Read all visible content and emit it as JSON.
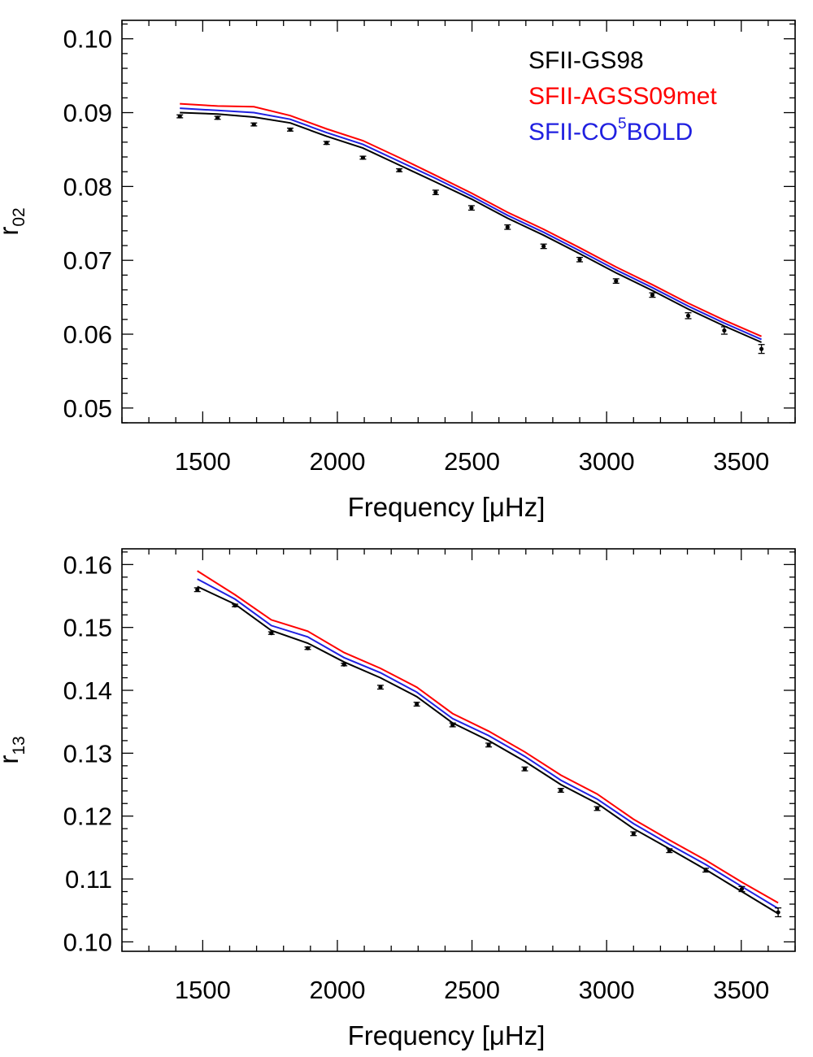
{
  "colors": {
    "model_gs98": "#000000",
    "model_agss09met": "#ff0000",
    "model_co5bold": "#2020e0",
    "observed": "#000000",
    "axes": "#000000"
  },
  "chart_data": [
    {
      "type": "line",
      "xlabel": "Frequency [μHz]",
      "ylabel": "r",
      "ylabel_sub": "02",
      "xlim": [
        1200,
        3700
      ],
      "ylim": [
        0.048,
        0.1025
      ],
      "xticks": [
        1500,
        2000,
        2500,
        3000,
        3500
      ],
      "xtick_labels": [
        "1500",
        "2000",
        "2500",
        "3000",
        "3500"
      ],
      "yticks": [
        0.05,
        0.06,
        0.07,
        0.08,
        0.09,
        0.1
      ],
      "ytick_labels": [
        "0.05",
        "0.06",
        "0.07",
        "0.08",
        "0.09",
        "0.10"
      ],
      "legend": {
        "position": "top-right",
        "entries": [
          {
            "series": "SFII-GS98",
            "text": "SFII-GS98",
            "sup": "",
            "after": ""
          },
          {
            "series": "SFII-AGSS09met",
            "text": "SFII-AGSS09met",
            "sup": "",
            "after": ""
          },
          {
            "series": "SFII-CO5BOLD",
            "text": "SFII-CO",
            "sup": "5",
            "after": "BOLD"
          }
        ]
      },
      "x": [
        1415,
        1555,
        1690,
        1825,
        1960,
        2095,
        2230,
        2365,
        2498,
        2632,
        2766,
        2900,
        3035,
        3170,
        3303,
        3437,
        3575
      ],
      "series": [
        {
          "name": "SFII-GS98",
          "color_key": "model_gs98",
          "values": [
            0.09,
            0.0898,
            0.0894,
            0.0886,
            0.0868,
            0.0852,
            0.0829,
            0.0806,
            0.0783,
            0.0757,
            0.0734,
            0.0709,
            0.0683,
            0.0659,
            0.0634,
            0.0611,
            0.0589
          ]
        },
        {
          "name": "SFII-CO5BOLD",
          "color_key": "model_co5bold",
          "values": [
            0.0906,
            0.0903,
            0.09,
            0.0891,
            0.0873,
            0.0857,
            0.0834,
            0.0811,
            0.0787,
            0.0761,
            0.0738,
            0.0713,
            0.0687,
            0.0663,
            0.0638,
            0.0615,
            0.0593
          ]
        },
        {
          "name": "SFII-AGSS09met",
          "color_key": "model_agss09met",
          "values": [
            0.0912,
            0.0909,
            0.0908,
            0.0896,
            0.0878,
            0.0862,
            0.0839,
            0.0815,
            0.0791,
            0.0765,
            0.0742,
            0.0717,
            0.0691,
            0.0667,
            0.0642,
            0.0619,
            0.0597
          ]
        }
      ],
      "observed": {
        "x": [
          1415,
          1555,
          1690,
          1825,
          1960,
          2095,
          2230,
          2365,
          2498,
          2632,
          2766,
          2900,
          3035,
          3170,
          3303,
          3437,
          3575
        ],
        "y": [
          0.0895,
          0.0893,
          0.0884,
          0.0877,
          0.0859,
          0.0839,
          0.0822,
          0.0792,
          0.0771,
          0.0745,
          0.0719,
          0.0701,
          0.0672,
          0.0653,
          0.0625,
          0.0605,
          0.058
        ],
        "err": [
          0.0002,
          0.0002,
          0.0002,
          0.0002,
          0.0002,
          0.0002,
          0.0002,
          0.0003,
          0.0003,
          0.0003,
          0.0003,
          0.0003,
          0.0003,
          0.0003,
          0.0004,
          0.0005,
          0.0006
        ]
      }
    },
    {
      "type": "line",
      "xlabel": "Frequency [μHz]",
      "ylabel": "r",
      "ylabel_sub": "13",
      "xlim": [
        1200,
        3700
      ],
      "ylim": [
        0.0985,
        0.1625
      ],
      "xticks": [
        1500,
        2000,
        2500,
        3000,
        3500
      ],
      "xtick_labels": [
        "1500",
        "2000",
        "2500",
        "3000",
        "3500"
      ],
      "yticks": [
        0.1,
        0.11,
        0.12,
        0.13,
        0.14,
        0.15,
        0.16
      ],
      "ytick_labels": [
        "0.10",
        "0.11",
        "0.12",
        "0.13",
        "0.14",
        "0.15",
        "0.16"
      ],
      "x": [
        1480,
        1620,
        1755,
        1890,
        2025,
        2160,
        2295,
        2428,
        2562,
        2696,
        2830,
        2965,
        3100,
        3233,
        3368,
        3502,
        3637
      ],
      "series": [
        {
          "name": "SFII-GS98",
          "color_key": "model_gs98",
          "values": [
            0.1565,
            0.1537,
            0.1495,
            0.1475,
            0.1445,
            0.142,
            0.139,
            0.1348,
            0.132,
            0.1287,
            0.125,
            0.122,
            0.118,
            0.1148,
            0.1115,
            0.108,
            0.1045
          ]
        },
        {
          "name": "SFII-CO5BOLD",
          "color_key": "model_co5bold",
          "values": [
            0.1577,
            0.1545,
            0.1503,
            0.1485,
            0.1452,
            0.1428,
            0.1397,
            0.1355,
            0.1328,
            0.1295,
            0.1257,
            0.1227,
            0.1188,
            0.1155,
            0.1123,
            0.1088,
            0.1053
          ]
        },
        {
          "name": "SFII-AGSS09met",
          "color_key": "model_agss09met",
          "values": [
            0.159,
            0.1552,
            0.1512,
            0.1494,
            0.146,
            0.1435,
            0.1405,
            0.1363,
            0.1335,
            0.1302,
            0.1265,
            0.1235,
            0.1195,
            0.1162,
            0.113,
            0.1095,
            0.1062
          ]
        }
      ],
      "observed": {
        "x": [
          1480,
          1620,
          1755,
          1890,
          2025,
          2160,
          2295,
          2428,
          2562,
          2696,
          2830,
          2965,
          3100,
          3233,
          3368,
          3502,
          3637
        ],
        "y": [
          0.156,
          0.1535,
          0.1491,
          0.1467,
          0.1441,
          0.1405,
          0.1378,
          0.1345,
          0.1313,
          0.1275,
          0.1241,
          0.1212,
          0.1172,
          0.1145,
          0.1114,
          0.1084,
          0.1047
        ],
        "err": [
          0.0003,
          0.0002,
          0.0002,
          0.0002,
          0.0002,
          0.0003,
          0.0003,
          0.0003,
          0.0003,
          0.0003,
          0.0003,
          0.0003,
          0.0003,
          0.0003,
          0.0003,
          0.0004,
          0.0007
        ]
      }
    }
  ]
}
